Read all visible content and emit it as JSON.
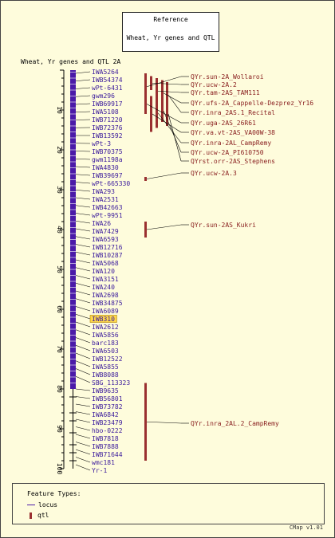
{
  "reference": {
    "title": "Reference",
    "subtitle": "Wheat, Yr genes and QTL"
  },
  "map_title": "Wheat, Yr genes and QTL 2A",
  "scale_ticks": [
    "10",
    "20",
    "30",
    "40",
    "50",
    "60",
    "70",
    "80",
    "90",
    "100"
  ],
  "scale_range": [
    0,
    100
  ],
  "markers": [
    "IWA5264",
    "IWB54374",
    "wPt-6431",
    "gwm296",
    "IWB69917",
    "IWA5108",
    "IWB71220",
    "IWB72376",
    "IWB13592",
    "wPt-3",
    "IWB70375",
    "gwm1198a",
    "IWA4830",
    "IWB39697",
    "wPt-665330",
    "IWA293",
    "IWA2531",
    "IWB42663",
    "wPt-9951",
    "IWA26",
    "IWA7429",
    "IWA6593",
    "IWB12716",
    "IWB10287",
    "IWA5068",
    "IWA120",
    "IWA3151",
    "IWA240",
    "IWA2698",
    "IWB34875",
    "IWA6089",
    "IWB310",
    "IWA2612",
    "IWA5856",
    "barc183",
    "IWA6503",
    "IWB12522",
    "IWA5855",
    "IWB8088",
    "SBG_113323",
    "IWB9635",
    "IWB56801",
    "IWB73782",
    "IWA6842",
    "IWB23479",
    "hbo-0222",
    "IWB7818",
    "IWB7888",
    "IWB71644",
    "wmc181",
    "Yr-1"
  ],
  "highlighted_marker": "IWB310",
  "qtls": [
    {
      "label": "QYr.sun-2A_Wollaroi",
      "start": 0.8,
      "end": 7.5
    },
    {
      "label": "QYr.ucw-2A.2",
      "start": 1.5,
      "end": 5.0
    },
    {
      "label": "QYr.tam-2AS_TAM111",
      "start": 2.0,
      "end": 8.5
    },
    {
      "label": "QYr.ufs-2A_Cappelle-Dezprez_Yr16",
      "start": 2.5,
      "end": 9.0
    },
    {
      "label": "QYr.inra_2AS.1_Recital",
      "start": 3.0,
      "end": 9.5
    },
    {
      "label": "QYr.uga-2AS_26R61",
      "start": 6.0,
      "end": 11.0
    },
    {
      "label": "QYr.va.vt-2AS_VA00W-38",
      "start": 6.5,
      "end": 15.5
    },
    {
      "label": "QYr.inra-2AL_CampRemy",
      "start": 7.0,
      "end": 14.5
    },
    {
      "label": "QYr.ucw-2A_PI610750",
      "start": 7.5,
      "end": 13.0
    },
    {
      "label": "QYrst.orr-2AS_Stephens",
      "start": 8.0,
      "end": 14.0
    },
    {
      "label": "QYr.ucw-2A.3",
      "start": 26.8,
      "end": 27.8
    },
    {
      "label": "QYr.sun-2AS_Kukri",
      "start": 38.0,
      "end": 42.0
    },
    {
      "label": "QYr.inra_2AL.2_CampRemy",
      "start": 78.5,
      "end": 98.0
    }
  ],
  "legend": {
    "title": "Feature Types:",
    "items": [
      {
        "label": "locus",
        "color": "#4b1aa8"
      },
      {
        "label": "qtl",
        "color": "#9a3030"
      }
    ]
  },
  "version": "CMap v1.01",
  "colors": {
    "background": "#fefcdc",
    "chromosome": "#4b1aa8",
    "marker_text": "#3a1a9c",
    "qtl_fill": "#9a3030",
    "qtl_text": "#8a2020",
    "highlight": "#ffd84a"
  }
}
